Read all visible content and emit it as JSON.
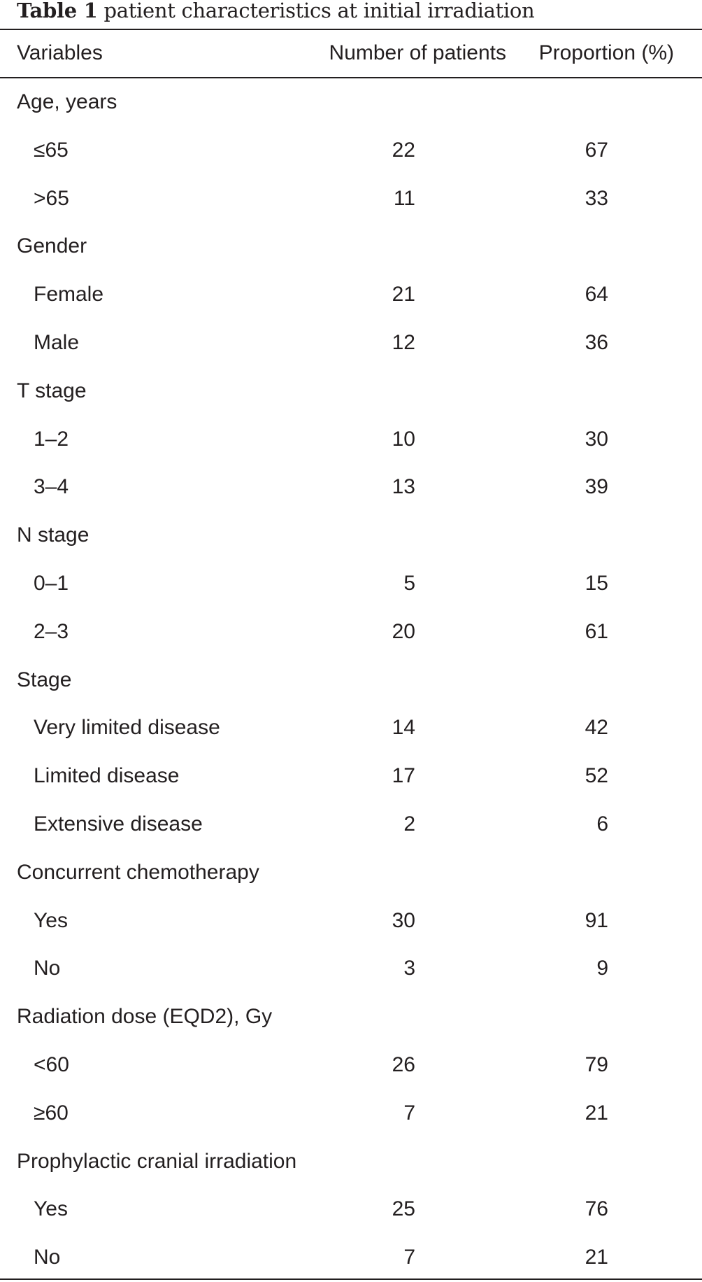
{
  "caption": {
    "label": "Table 1",
    "text": "patient characteristics at initial irradiation"
  },
  "headers": [
    "Variables",
    "Number of patients",
    "Proportion (%)"
  ],
  "rows": [
    {
      "label": "Age, years",
      "indent": false,
      "n": "",
      "pct": ""
    },
    {
      "label": "≤65",
      "indent": true,
      "n": "22",
      "pct": "67"
    },
    {
      "label": ">65",
      "indent": true,
      "n": "11",
      "pct": "33"
    },
    {
      "label": "Gender",
      "indent": false,
      "n": "",
      "pct": ""
    },
    {
      "label": "Female",
      "indent": true,
      "n": "21",
      "pct": "64"
    },
    {
      "label": "Male",
      "indent": true,
      "n": "12",
      "pct": "36"
    },
    {
      "label": "T stage",
      "indent": false,
      "n": "",
      "pct": ""
    },
    {
      "label": "1–2",
      "indent": true,
      "n": "10",
      "pct": "30"
    },
    {
      "label": "3–4",
      "indent": true,
      "n": "13",
      "pct": "39"
    },
    {
      "label": "N stage",
      "indent": false,
      "n": "",
      "pct": ""
    },
    {
      "label": "0–1",
      "indent": true,
      "n": "5",
      "pct": "15"
    },
    {
      "label": "2–3",
      "indent": true,
      "n": "20",
      "pct": "61"
    },
    {
      "label": "Stage",
      "indent": false,
      "n": "",
      "pct": ""
    },
    {
      "label": "Very limited disease",
      "indent": true,
      "n": "14",
      "pct": "42"
    },
    {
      "label": "Limited disease",
      "indent": true,
      "n": "17",
      "pct": "52"
    },
    {
      "label": "Extensive disease",
      "indent": true,
      "n": "2",
      "pct": "6"
    },
    {
      "label": "Concurrent chemotherapy",
      "indent": false,
      "n": "",
      "pct": ""
    },
    {
      "label": "Yes",
      "indent": true,
      "n": "30",
      "pct": "91"
    },
    {
      "label": "No",
      "indent": true,
      "n": "3",
      "pct": "9"
    },
    {
      "label": "Radiation dose (EQD2), Gy",
      "indent": false,
      "n": "",
      "pct": ""
    },
    {
      "label": "<60",
      "indent": true,
      "n": "26",
      "pct": "79"
    },
    {
      "label": "≥60",
      "indent": true,
      "n": "7",
      "pct": "21"
    },
    {
      "label": "Prophylactic cranial irradiation",
      "indent": false,
      "n": "",
      "pct": ""
    },
    {
      "label": "Yes",
      "indent": true,
      "n": "25",
      "pct": "76"
    },
    {
      "label": "No",
      "indent": true,
      "n": "7",
      "pct": "21"
    }
  ]
}
